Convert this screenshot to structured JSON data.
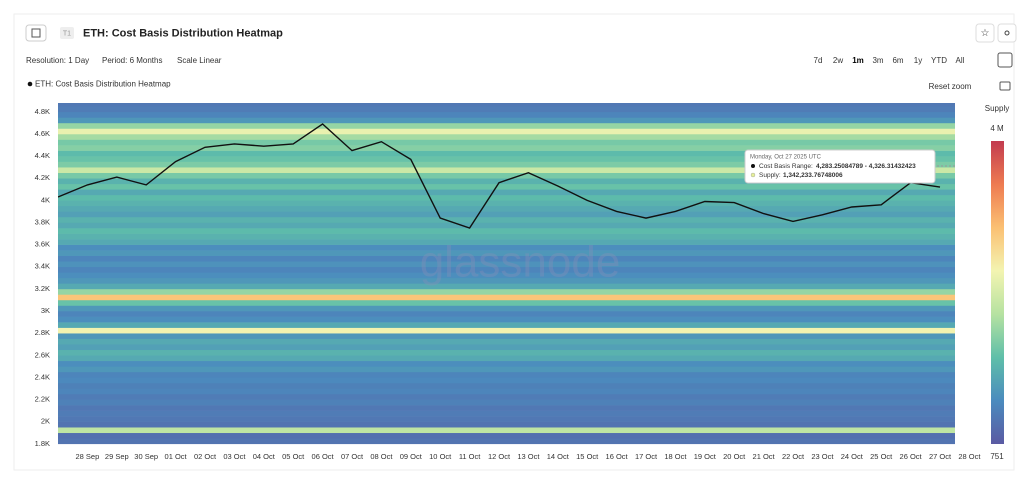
{
  "chart_data": {
    "type": "heatmap",
    "title": "ETH: Cost Basis Distribution Heatmap",
    "categories": [
      null,
      "28 Sep",
      "29 Sep",
      "30 Sep",
      "01 Oct",
      "02 Oct",
      "03 Oct",
      "04 Oct",
      "05 Oct",
      "06 Oct",
      "07 Oct",
      "08 Oct",
      "09 Oct",
      "10 Oct",
      "11 Oct",
      "12 Oct",
      "13 Oct",
      "14 Oct",
      "15 Oct",
      "16 Oct",
      "17 Oct",
      "18 Oct",
      "19 Oct",
      "20 Oct",
      "21 Oct",
      "22 Oct",
      "23 Oct",
      "24 Oct",
      "25 Oct",
      "26 Oct",
      "27 Oct",
      "28 Oct"
    ],
    "ylim": [
      1780,
      4880
    ],
    "yticks": [
      {
        "value": 1800,
        "label": "1.8K"
      },
      {
        "value": 2000,
        "label": "2K"
      },
      {
        "value": 2200,
        "label": "2.2K"
      },
      {
        "value": 2400,
        "label": "2.4K"
      },
      {
        "value": 2600,
        "label": "2.6K"
      },
      {
        "value": 2800,
        "label": "2.8K"
      },
      {
        "value": 3000,
        "label": "3K"
      },
      {
        "value": 3200,
        "label": "3.2K"
      },
      {
        "value": 3400,
        "label": "3.4K"
      },
      {
        "value": 3600,
        "label": "3.6K"
      },
      {
        "value": 3800,
        "label": "3.8K"
      },
      {
        "value": 4000,
        "label": "4K"
      },
      {
        "value": 4200,
        "label": "4.2K"
      },
      {
        "value": 4400,
        "label": "4.4K"
      },
      {
        "value": 4600,
        "label": "4.6K"
      },
      {
        "value": 4800,
        "label": "4.8K"
      }
    ],
    "series": [
      {
        "name": "ETH: Cost Basis Distribution Heatmap",
        "type": "line",
        "color": "#111111",
        "values": [
          4030,
          4140,
          4210,
          4140,
          4350,
          4480,
          4510,
          4490,
          4510,
          4690,
          4450,
          4530,
          4370,
          3840,
          3750,
          4160,
          4250,
          4130,
          4000,
          3900,
          3840,
          3900,
          3990,
          3980,
          3880,
          3810,
          3870,
          3940,
          3960,
          4160,
          4120,
          null
        ]
      }
    ],
    "heatmap": {
      "name": "Supply",
      "bins": [
        1800,
        1850,
        1900,
        1950,
        2000,
        2050,
        2100,
        2150,
        2200,
        2250,
        2300,
        2350,
        2400,
        2450,
        2500,
        2550,
        2600,
        2650,
        2700,
        2750,
        2800,
        2850,
        2900,
        2950,
        3000,
        3050,
        3100,
        3150,
        3200,
        3250,
        3300,
        3350,
        3400,
        3450,
        3500,
        3550,
        3600,
        3650,
        3700,
        3750,
        3800,
        3850,
        3900,
        3950,
        4000,
        4050,
        4100,
        4150,
        4200,
        4250,
        4300,
        4350,
        4400,
        4450,
        4500,
        4550,
        4600,
        4650,
        4700,
        4750,
        4800,
        4850,
        4900
      ],
      "values": [
        300000,
        250000,
        1800000,
        300000,
        350000,
        400000,
        350000,
        450000,
        400000,
        500000,
        450000,
        550000,
        500000,
        700000,
        600000,
        900000,
        1000000,
        800000,
        900000,
        700000,
        2300000,
        900000,
        600000,
        500000,
        700000,
        1200000,
        2800000,
        1500000,
        900000,
        700000,
        600000,
        500000,
        650000,
        500000,
        700000,
        600000,
        900000,
        1000000,
        1100000,
        900000,
        1000000,
        800000,
        900000,
        1000000,
        1100000,
        900000,
        1200000,
        1000000,
        1300000,
        1900000,
        1342233,
        1200000,
        1100000,
        1400000,
        1300000,
        1600000,
        2200000,
        1500000,
        700000,
        500000,
        400000,
        350000
      ],
      "clim": [
        751,
        4000000
      ],
      "cticks": [
        {
          "value": 751,
          "label": "751"
        },
        {
          "value": 4000000,
          "label": "4 M"
        }
      ],
      "colorscale": [
        "#5a5aa3",
        "#4b8bbe",
        "#5fbfa9",
        "#b6e2a1",
        "#f3f4b1",
        "#fbc073",
        "#ee7b51",
        "#c23b50"
      ]
    },
    "tooltip": {
      "date": "Monday, Oct 27 2025 UTC",
      "range_label": "Cost Basis Range:",
      "range": "4,283.25084789 - 4,326.31432423",
      "supply_label": "Supply:",
      "supply": "1,342,233.76748006"
    }
  },
  "ui": {
    "badge": "T1",
    "resolution": "Resolution: 1 Day",
    "period": "Period: 6 Months",
    "scale": "Scale Linear",
    "ranges": [
      "7d",
      "2w",
      "1m",
      "3m",
      "6m",
      "1y",
      "YTD",
      "All"
    ],
    "reset": "Reset zoom",
    "watermark": "glassnode"
  }
}
